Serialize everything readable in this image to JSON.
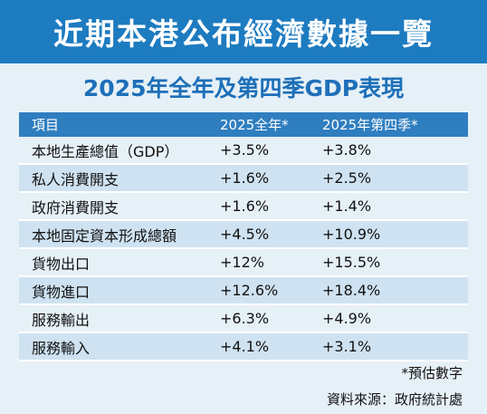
{
  "banner_title": "近期本港公布經濟數據一覽",
  "subtitle": "2025年全年及第四季GDP表現",
  "table": {
    "headers": [
      "項目",
      "2025全年*",
      "2025年第四季*"
    ],
    "rows": [
      [
        "本地生產總值（GDP）",
        "+3.5%",
        "+3.8%"
      ],
      [
        "私人消費開支",
        "+1.6%",
        "+2.5%"
      ],
      [
        "政府消費開支",
        "+1.6%",
        "+1.4%"
      ],
      [
        "本地固定資本形成總額",
        "+4.5%",
        "+10.9%"
      ],
      [
        "貨物出口",
        "+12%",
        "+15.5%"
      ],
      [
        "貨物進口",
        "+12.6%",
        "+18.4%"
      ],
      [
        "服務輸出",
        "+6.3%",
        "+4.9%"
      ],
      [
        "服務輸入",
        "+4.1%",
        "+3.1%"
      ]
    ]
  },
  "footnote": "*預估數字",
  "source": "資料來源：政府統計處",
  "colors": {
    "banner": "#1d7bc0",
    "subtitle_text": "#1d6fb8",
    "header_row": "#2f7ec0",
    "row_light": "#e6f0f7",
    "row_dark": "#cfe2f1"
  }
}
